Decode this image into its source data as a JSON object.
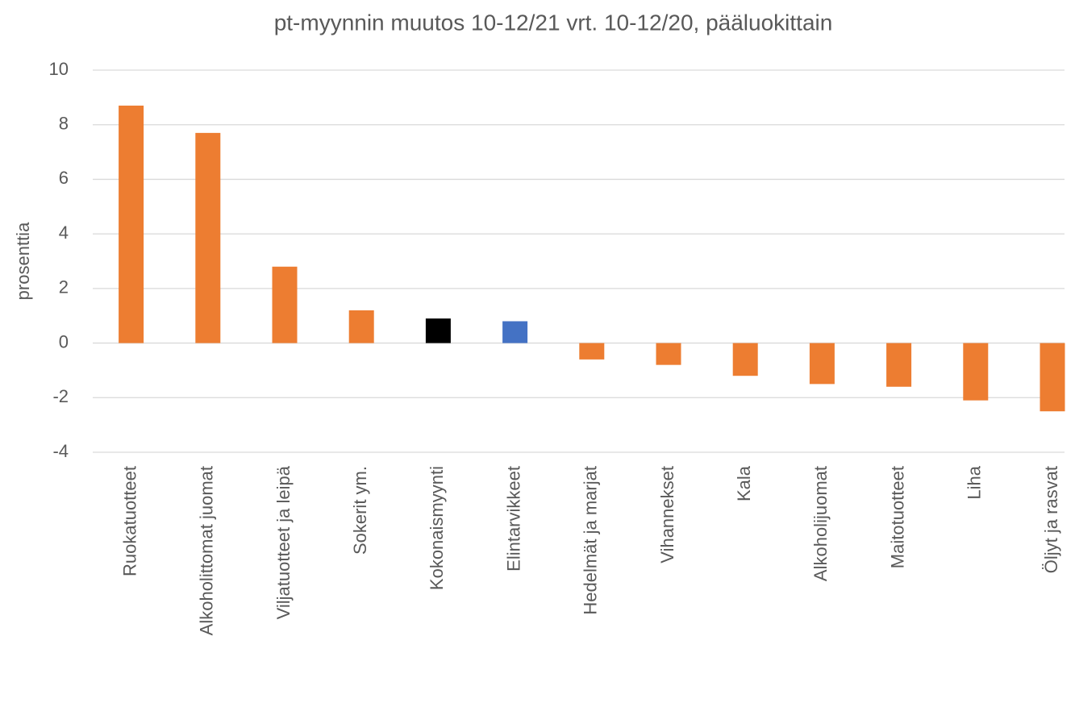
{
  "chart_data": {
    "type": "bar",
    "title": "pt-myynnin muutos 10-12/21 vrt. 10-12/20, pääluokittain",
    "y_label": "prosenttia",
    "categories": [
      "Ruokatuotteet",
      "Alkoholittomat juomat",
      "Viljatuotteet ja leipä",
      "Sokerit ym.",
      "Kokonaismyynti",
      "Elintarvikkeet",
      "Hedelmät ja marjat",
      "Vihannekset",
      "Kala",
      "Alkoholijuomat",
      "Maitotuotteet",
      "Liha",
      "Öljyt ja rasvat"
    ],
    "values": [
      8.7,
      7.7,
      2.8,
      1.2,
      0.9,
      0.8,
      -0.6,
      -0.8,
      -1.2,
      -1.5,
      -1.6,
      -2.1,
      -2.5
    ],
    "colors": [
      "#ed7d31",
      "#ed7d31",
      "#ed7d31",
      "#ed7d31",
      "#000000",
      "#4472c4",
      "#ed7d31",
      "#ed7d31",
      "#ed7d31",
      "#ed7d31",
      "#ed7d31",
      "#ed7d31",
      "#ed7d31"
    ],
    "ylim": [
      -4,
      10
    ],
    "yticks": [
      -4,
      -2,
      0,
      2,
      4,
      6,
      8,
      10
    ],
    "grid": true
  }
}
